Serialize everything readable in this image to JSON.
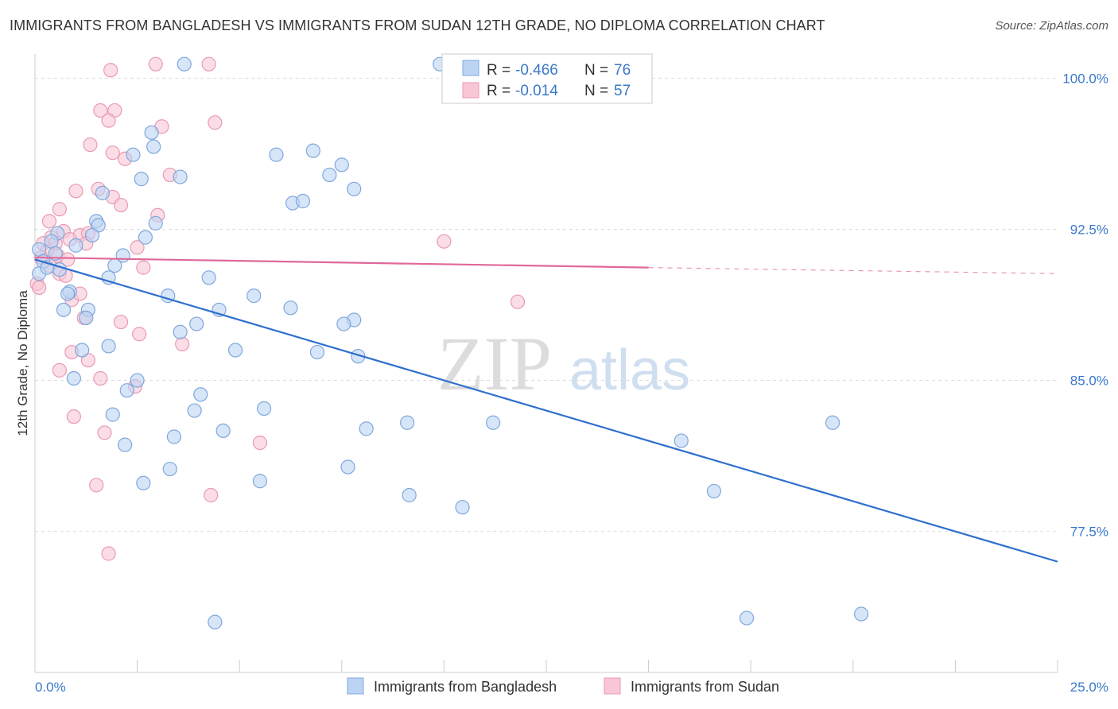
{
  "title": "IMMIGRANTS FROM BANGLADESH VS IMMIGRANTS FROM SUDAN 12TH GRADE, NO DIPLOMA CORRELATION CHART",
  "source": "Source: ZipAtlas.com",
  "watermark": {
    "zip": "ZIP",
    "atlas": "atlas"
  },
  "colors": {
    "blue_fill": "#bcd4f4",
    "blue_stroke": "#7fa8dc",
    "blue_line": "#2e6fce",
    "pink_fill": "#f9c6d6",
    "pink_stroke": "#e99ab4",
    "pink_line": "#e0689a",
    "tick_text": "#3a78c9",
    "grid": "#dddddd"
  },
  "legend": {
    "blue": {
      "r_label": "R =",
      "r_value": "-0.466",
      "n_label": "N =",
      "n_value": "76"
    },
    "pink": {
      "r_label": "R =",
      "r_value": "-0.014",
      "n_label": "N =",
      "n_value": "57"
    }
  },
  "chart_data": {
    "type": "scatter",
    "title": "IMMIGRANTS FROM BANGLADESH VS IMMIGRANTS FROM SUDAN 12TH GRADE, NO DIPLOMA CORRELATION CHART",
    "xlabel": "",
    "ylabel": "12th Grade, No Diploma",
    "xlim": [
      0,
      25
    ],
    "ylim": [
      70.5,
      101.2
    ],
    "x_tick_labels": [
      "0.0%",
      "25.0%"
    ],
    "y_ticks": [
      {
        "value": 100.0,
        "label": "100.0%"
      },
      {
        "value": 92.5,
        "label": "92.5%"
      },
      {
        "value": 85.0,
        "label": "85.0%"
      },
      {
        "value": 77.5,
        "label": "77.5%"
      }
    ],
    "grid": true,
    "legend_position": "bottom",
    "series": [
      {
        "name": "Immigrants from Bangladesh",
        "color": "#bcd4f4",
        "trend": {
          "x": [
            0.0,
            25.0
          ],
          "y": [
            91.0,
            76.0
          ]
        },
        "points": [
          [
            3.65,
            100.7
          ],
          [
            9.9,
            100.7
          ],
          [
            2.85,
            97.3
          ],
          [
            2.4,
            96.2
          ],
          [
            2.9,
            96.6
          ],
          [
            6.8,
            96.4
          ],
          [
            7.2,
            95.2
          ],
          [
            5.9,
            96.2
          ],
          [
            7.5,
            95.7
          ],
          [
            2.6,
            95.0
          ],
          [
            3.55,
            95.1
          ],
          [
            1.65,
            94.3
          ],
          [
            7.8,
            94.5
          ],
          [
            6.3,
            93.8
          ],
          [
            6.55,
            93.9
          ],
          [
            1.5,
            92.9
          ],
          [
            1.55,
            92.7
          ],
          [
            2.95,
            92.8
          ],
          [
            2.7,
            92.1
          ],
          [
            1.4,
            92.2
          ],
          [
            0.55,
            92.3
          ],
          [
            1.0,
            91.7
          ],
          [
            0.4,
            91.9
          ],
          [
            0.1,
            91.5
          ],
          [
            2.15,
            91.2
          ],
          [
            0.2,
            90.9
          ],
          [
            0.6,
            90.5
          ],
          [
            1.95,
            90.7
          ],
          [
            0.1,
            90.3
          ],
          [
            1.8,
            90.1
          ],
          [
            4.25,
            90.1
          ],
          [
            0.85,
            89.4
          ],
          [
            3.25,
            89.2
          ],
          [
            5.35,
            89.2
          ],
          [
            0.8,
            89.3
          ],
          [
            1.3,
            88.5
          ],
          [
            0.7,
            88.5
          ],
          [
            6.25,
            88.6
          ],
          [
            4.5,
            88.5
          ],
          [
            7.8,
            88.0
          ],
          [
            3.95,
            87.8
          ],
          [
            1.25,
            88.1
          ],
          [
            3.55,
            87.4
          ],
          [
            7.55,
            87.8
          ],
          [
            1.8,
            86.7
          ],
          [
            1.15,
            86.5
          ],
          [
            4.9,
            86.5
          ],
          [
            6.9,
            86.4
          ],
          [
            7.9,
            86.2
          ],
          [
            0.95,
            85.1
          ],
          [
            2.5,
            85.0
          ],
          [
            2.25,
            84.5
          ],
          [
            4.05,
            84.3
          ],
          [
            5.6,
            83.6
          ],
          [
            3.9,
            83.5
          ],
          [
            1.9,
            83.3
          ],
          [
            8.1,
            82.6
          ],
          [
            9.1,
            82.9
          ],
          [
            11.2,
            82.9
          ],
          [
            4.6,
            82.5
          ],
          [
            3.4,
            82.2
          ],
          [
            2.2,
            81.8
          ],
          [
            15.8,
            82.0
          ],
          [
            5.5,
            80.0
          ],
          [
            3.3,
            80.6
          ],
          [
            7.65,
            80.7
          ],
          [
            2.65,
            79.9
          ],
          [
            9.15,
            79.3
          ],
          [
            10.45,
            78.7
          ],
          [
            16.6,
            79.5
          ],
          [
            19.5,
            82.9
          ],
          [
            4.4,
            73.0
          ],
          [
            17.4,
            73.2
          ],
          [
            20.2,
            73.4
          ],
          [
            0.3,
            90.6
          ],
          [
            0.5,
            91.3
          ]
        ]
      },
      {
        "name": "Immigrants from Sudan",
        "color": "#f9c6d6",
        "trend": {
          "x": [
            0.0,
            15.0
          ],
          "y": [
            91.1,
            90.6
          ],
          "dashed_to": {
            "x": 25.0,
            "y": 90.3
          }
        },
        "points": [
          [
            1.85,
            100.4
          ],
          [
            2.95,
            100.7
          ],
          [
            4.25,
            100.7
          ],
          [
            1.6,
            98.4
          ],
          [
            1.95,
            98.4
          ],
          [
            1.8,
            97.9
          ],
          [
            3.1,
            97.6
          ],
          [
            4.4,
            97.8
          ],
          [
            1.35,
            96.7
          ],
          [
            1.9,
            96.3
          ],
          [
            2.2,
            96.0
          ],
          [
            3.3,
            95.2
          ],
          [
            1.0,
            94.4
          ],
          [
            1.55,
            94.5
          ],
          [
            1.9,
            94.1
          ],
          [
            2.1,
            93.7
          ],
          [
            3.0,
            93.2
          ],
          [
            0.6,
            93.5
          ],
          [
            0.35,
            92.9
          ],
          [
            0.4,
            92.1
          ],
          [
            0.7,
            92.4
          ],
          [
            1.1,
            92.2
          ],
          [
            1.3,
            92.3
          ],
          [
            0.2,
            91.8
          ],
          [
            0.5,
            91.8
          ],
          [
            0.85,
            92.0
          ],
          [
            1.25,
            91.8
          ],
          [
            2.5,
            91.6
          ],
          [
            0.3,
            91.4
          ],
          [
            0.55,
            91.2
          ],
          [
            0.15,
            91.1
          ],
          [
            0.8,
            91.0
          ],
          [
            2.65,
            90.6
          ],
          [
            0.35,
            90.7
          ],
          [
            0.6,
            90.3
          ],
          [
            0.75,
            90.2
          ],
          [
            0.05,
            89.8
          ],
          [
            0.9,
            89.0
          ],
          [
            1.1,
            89.3
          ],
          [
            10.0,
            91.9
          ],
          [
            11.8,
            88.9
          ],
          [
            1.2,
            88.1
          ],
          [
            2.1,
            87.9
          ],
          [
            2.55,
            87.3
          ],
          [
            0.9,
            86.4
          ],
          [
            3.6,
            86.8
          ],
          [
            1.3,
            86.0
          ],
          [
            0.6,
            85.5
          ],
          [
            1.6,
            85.1
          ],
          [
            2.45,
            84.7
          ],
          [
            0.95,
            83.2
          ],
          [
            1.7,
            82.4
          ],
          [
            5.5,
            81.9
          ],
          [
            1.5,
            79.8
          ],
          [
            4.3,
            79.3
          ],
          [
            1.8,
            76.4
          ],
          [
            0.1,
            89.6
          ]
        ]
      }
    ]
  },
  "bottom_legend": {
    "blue_label": "Immigrants from Bangladesh",
    "pink_label": "Immigrants from Sudan"
  }
}
